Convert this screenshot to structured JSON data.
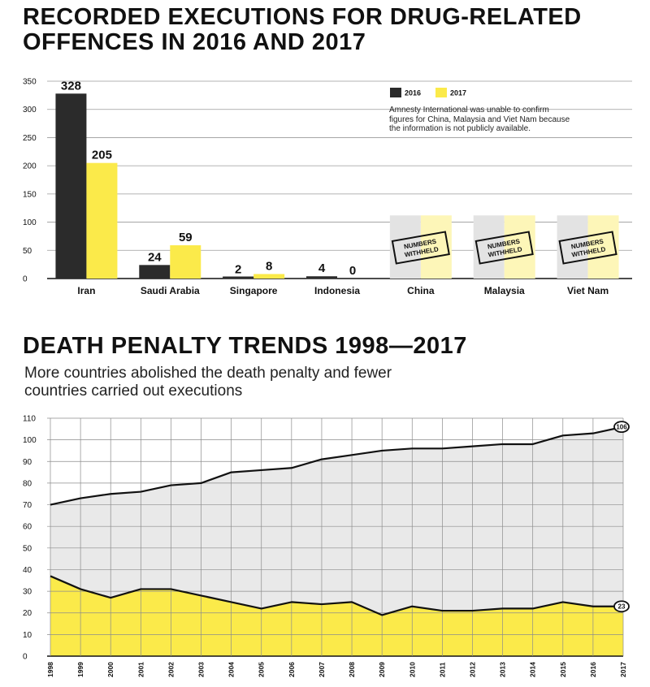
{
  "chart_data": [
    {
      "type": "bar",
      "title": "RECORDED EXECUTIONS FOR DRUG-RELATED OFFENCES IN 2016 AND 2017",
      "categories": [
        "Iran",
        "Saudi Arabia",
        "Singapore",
        "Indonesia",
        "China",
        "Malaysia",
        "Viet Nam"
      ],
      "series": [
        {
          "name": "2016",
          "values": [
            328,
            24,
            2,
            4,
            null,
            null,
            null
          ],
          "color": "#2b2b2b"
        },
        {
          "name": "2017",
          "values": [
            205,
            59,
            8,
            0,
            null,
            null,
            null
          ],
          "color": "#fbea4a"
        }
      ],
      "value_labels": {
        "2016": [
          "328",
          "24",
          "2",
          "4"
        ],
        "2017": [
          "205",
          "59",
          "8",
          "0"
        ]
      },
      "withheld_label": "NUMBERS WITHHELD",
      "withheld_categories": [
        "China",
        "Malaysia",
        "Viet Nam"
      ],
      "withheld_fill": {
        "2016": "#e3e3e3",
        "2017": "#fdf6b8"
      },
      "note": "Amnesty International was unable to confirm figures for China, Malaysia and Viet Nam because the information is not publicly available.",
      "ylim": [
        0,
        350
      ],
      "yticks": [
        0,
        50,
        100,
        150,
        200,
        250,
        300,
        350
      ],
      "legend_placement": "top-right",
      "grid": true
    },
    {
      "type": "area",
      "title": "DEATH PENALTY TRENDS 1998—2017",
      "subtitle": "More countries abolished the death penalty and fewer countries carried out executions",
      "x": [
        "1998",
        "1999",
        "2000",
        "2001",
        "2002",
        "2003",
        "2004",
        "2005",
        "2006",
        "2007",
        "2008",
        "2009",
        "2010",
        "2011",
        "2012",
        "2013",
        "2014",
        "2015",
        "2016",
        "2017"
      ],
      "series": [
        {
          "name": "",
          "values": [
            70,
            73,
            75,
            76,
            79,
            80,
            85,
            86,
            87,
            91,
            93,
            95,
            96,
            96,
            97,
            98,
            98,
            102,
            103,
            106
          ],
          "color": "#111111",
          "fill": "#e9e9e9"
        },
        {
          "name": "",
          "values": [
            37,
            31,
            27,
            31,
            31,
            28,
            25,
            22,
            25,
            24,
            25,
            19,
            23,
            21,
            21,
            22,
            22,
            25,
            23,
            23
          ],
          "color": "#111111",
          "fill": "#fbea4a"
        }
      ],
      "end_labels": [
        "106",
        "23"
      ],
      "ylim": [
        0,
        110
      ],
      "yticks": [
        0,
        10,
        20,
        30,
        40,
        50,
        60,
        70,
        80,
        90,
        100,
        110
      ],
      "grid": true
    }
  ]
}
